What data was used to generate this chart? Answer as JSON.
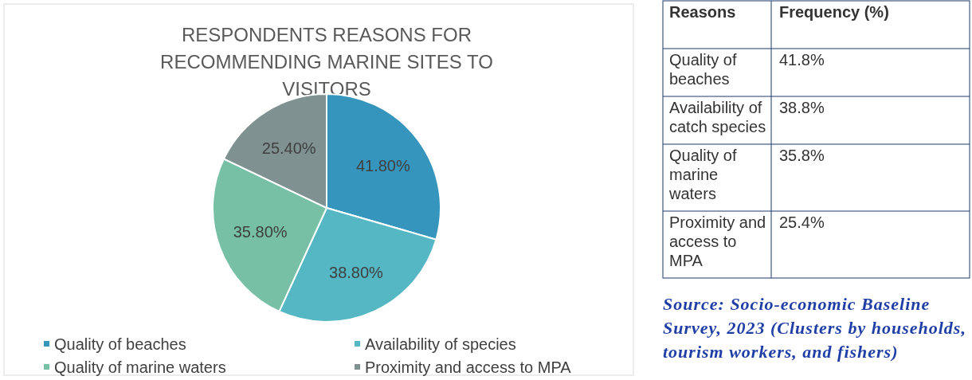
{
  "chart_data": [
    {
      "type": "pie",
      "title": "RESPONDENTS REASONS FOR RECOMMENDING MARINE SITES TO VISITORS",
      "categories": [
        "Quality of beaches",
        "Availability of species",
        "Quality of marine waters",
        "Proximity and access to MPA"
      ],
      "values": [
        41.8,
        38.8,
        35.8,
        25.4
      ],
      "value_labels": [
        "41.80%",
        "38.80%",
        "35.80%",
        "25.40%"
      ],
      "colors": [
        "#3595bd",
        "#55b7c4",
        "#77c0a5",
        "#7f9191"
      ],
      "legend": "bottom"
    },
    {
      "type": "other",
      "annotations": [
        "Reasons",
        "Frequency (%)",
        "Quality of beaches",
        "41.8%",
        "Availability of catch species",
        "38.8%",
        "Quality of marine waters",
        "35.8%",
        "Proximity and access to MPA",
        "25.4%",
        "Source: Socio-economic Baseline Survey, 2023 (Clusters by households, tourism workers, and fishers)"
      ]
    }
  ]
}
